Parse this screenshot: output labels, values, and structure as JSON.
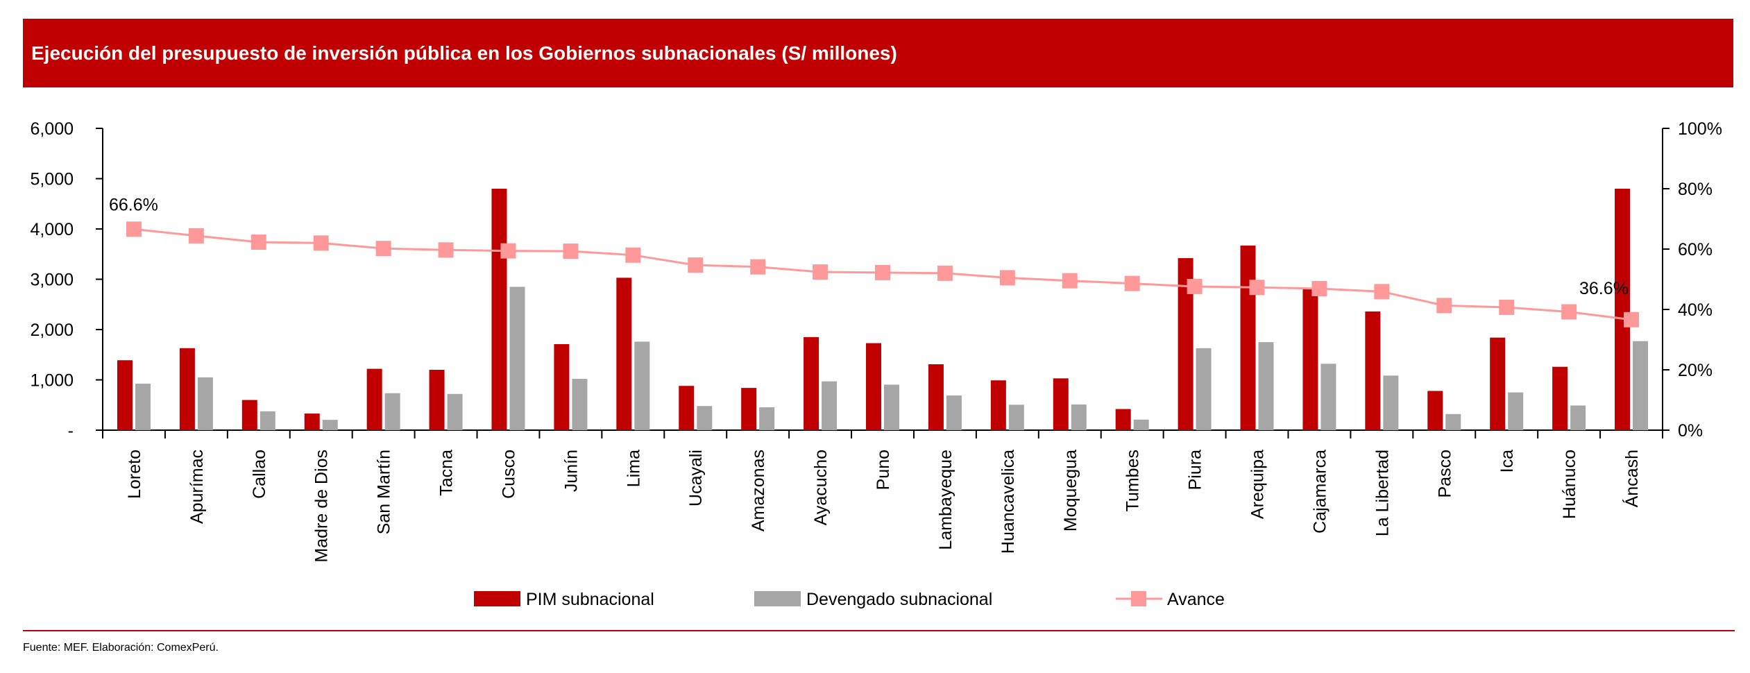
{
  "header": {
    "title": "Ejecución del presupuesto de inversión pública en los Gobiernos subnacionales (S/ millones)"
  },
  "footer": {
    "source": "Fuente: MEF. Elaboración: ComexPerú."
  },
  "colors": {
    "header_bg": "#c00000",
    "pim": "#c00000",
    "devengado": "#a6a6a6",
    "avance": "#ff9999",
    "rule": "#c00000"
  },
  "chart_data": {
    "type": "bar",
    "title": "Ejecución del presupuesto de inversión pública en los Gobiernos subnacionales (S/ millones)",
    "categories": [
      "Loreto",
      "Apurímac",
      "Callao",
      "Madre de Dios",
      "San Martín",
      "Tacna",
      "Cusco",
      "Junín",
      "Lima",
      "Ucayali",
      "Amazonas",
      "Ayacucho",
      "Puno",
      "Lambayeque",
      "Huancavelica",
      "Moquegua",
      "Tumbes",
      "Piura",
      "Arequipa",
      "Cajamarca",
      "La Libertad",
      "Pasco",
      "Ica",
      "Huánuco",
      "Áncash"
    ],
    "series": [
      {
        "name": "PIM subnacional",
        "kind": "bar",
        "axis": "left",
        "values": [
          1390,
          1630,
          600,
          330,
          1220,
          1200,
          4800,
          1710,
          3030,
          880,
          840,
          1850,
          1730,
          1310,
          990,
          1030,
          420,
          3420,
          3670,
          2810,
          2360,
          780,
          1840,
          1260,
          4800
        ]
      },
      {
        "name": "Devengado subnacional",
        "kind": "bar",
        "axis": "left",
        "values": [
          925,
          1050,
          375,
          205,
          735,
          720,
          2850,
          1020,
          1760,
          480,
          455,
          970,
          905,
          690,
          505,
          510,
          210,
          1630,
          1750,
          1320,
          1085,
          320,
          750,
          490,
          1770
        ]
      },
      {
        "name": "Avance",
        "kind": "line",
        "axis": "right",
        "unit": "%",
        "values": [
          66.6,
          64.4,
          62.3,
          62.0,
          60.2,
          59.7,
          59.4,
          59.3,
          58.0,
          54.7,
          54.1,
          52.4,
          52.2,
          52.0,
          50.5,
          49.5,
          48.6,
          47.6,
          47.3,
          46.9,
          45.9,
          41.3,
          40.7,
          39.2,
          36.6
        ]
      }
    ],
    "y_left": {
      "range": [
        0,
        6000
      ],
      "ticks": [
        "6,000",
        "5,000",
        "4,000",
        "3,000",
        "2,000",
        "1,000",
        "-"
      ],
      "tick_values": [
        6000,
        5000,
        4000,
        3000,
        2000,
        1000,
        0
      ]
    },
    "y_right": {
      "range": [
        0,
        100
      ],
      "ticks": [
        "100%",
        "80%",
        "60%",
        "40%",
        "20%",
        "0%"
      ],
      "tick_values": [
        100,
        80,
        60,
        40,
        20,
        0
      ]
    },
    "annotations": [
      {
        "index": 0,
        "text": "66.6%"
      },
      {
        "index": 24,
        "text": "36.6%"
      }
    ],
    "legend": {
      "position": "bottom",
      "items": [
        "PIM subnacional",
        "Devengado subnacional",
        "Avance"
      ]
    },
    "grid": false
  }
}
